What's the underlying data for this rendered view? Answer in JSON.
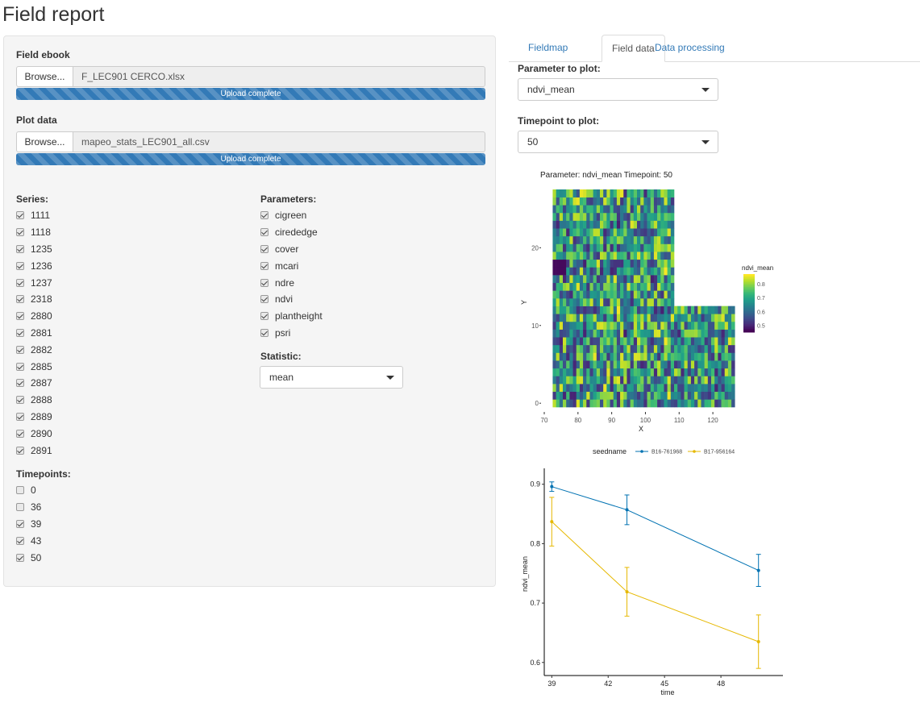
{
  "page": {
    "title": "Field report"
  },
  "sidebar": {
    "ebook": {
      "label": "Field ebook",
      "browse": "Browse...",
      "file": "F_LEC901 CERCO.xlsx",
      "status": "Upload complete",
      "progress": 1.0
    },
    "plot": {
      "label": "Plot data",
      "browse": "Browse...",
      "file": "mapeo_stats_LEC901_all.csv",
      "status": "Upload complete",
      "progress": 1.0
    },
    "series": {
      "label": "Series:",
      "items": [
        {
          "label": "1111",
          "checked": true
        },
        {
          "label": "1118",
          "checked": true
        },
        {
          "label": "1235",
          "checked": true
        },
        {
          "label": "1236",
          "checked": true
        },
        {
          "label": "1237",
          "checked": true
        },
        {
          "label": "2318",
          "checked": true
        },
        {
          "label": "2880",
          "checked": true
        },
        {
          "label": "2881",
          "checked": true
        },
        {
          "label": "2882",
          "checked": true
        },
        {
          "label": "2885",
          "checked": true
        },
        {
          "label": "2887",
          "checked": true
        },
        {
          "label": "2888",
          "checked": true
        },
        {
          "label": "2889",
          "checked": true
        },
        {
          "label": "2890",
          "checked": true
        },
        {
          "label": "2891",
          "checked": true
        }
      ]
    },
    "timepoints": {
      "label": "Timepoints:",
      "items": [
        {
          "label": "0",
          "checked": false
        },
        {
          "label": "36",
          "checked": false
        },
        {
          "label": "39",
          "checked": true
        },
        {
          "label": "43",
          "checked": true
        },
        {
          "label": "50",
          "checked": true
        }
      ]
    },
    "parameters": {
      "label": "Parameters:",
      "items": [
        {
          "label": "cigreen",
          "checked": true
        },
        {
          "label": "cirededge",
          "checked": true
        },
        {
          "label": "cover",
          "checked": true
        },
        {
          "label": "mcari",
          "checked": true
        },
        {
          "label": "ndre",
          "checked": true
        },
        {
          "label": "ndvi",
          "checked": true
        },
        {
          "label": "plantheight",
          "checked": true
        },
        {
          "label": "psri",
          "checked": true
        }
      ]
    },
    "statistic": {
      "label": "Statistic:",
      "value": "mean"
    }
  },
  "tabs": {
    "items": [
      {
        "label": "Fieldmap",
        "active": false
      },
      {
        "label": "Field data",
        "active": true
      },
      {
        "label": "Data processing",
        "active": false
      }
    ]
  },
  "main": {
    "parameter": {
      "label": "Parameter to plot:",
      "value": "ndvi_mean"
    },
    "timepoint": {
      "label": "Timepoint to plot:",
      "value": "50"
    }
  },
  "chart_data": [
    {
      "type": "heatmap",
      "title": "Parameter: ndvi_mean Timepoint: 50",
      "xlabel": "X",
      "ylabel": "Y",
      "xticks": [
        70,
        80,
        90,
        100,
        110,
        120
      ],
      "yticks": [
        0,
        10,
        20
      ],
      "xlim": [
        70,
        125
      ],
      "ylim": [
        -0.5,
        27.5
      ],
      "legend": {
        "title": "ndvi_mean",
        "ticks": [
          0.8,
          0.7,
          0.6,
          0.5
        ],
        "range": [
          0.45,
          0.87
        ],
        "placement": "right"
      },
      "regions": [
        {
          "x_range": [
            73,
            108
          ],
          "y_range": [
            0,
            27
          ]
        },
        {
          "x_range": [
            109,
            126
          ],
          "y_range": [
            0,
            12
          ]
        }
      ],
      "value_range": [
        0.45,
        0.87
      ],
      "colormap": "viridis"
    },
    {
      "type": "line",
      "xlabel": "time",
      "ylabel": "ndvi_mean",
      "xticks": [
        39,
        42,
        45,
        48
      ],
      "yticks": [
        0.6,
        0.7,
        0.8,
        0.9
      ],
      "xlim": [
        38.6,
        51.3
      ],
      "ylim": [
        0.578,
        0.92
      ],
      "legend": {
        "title": "seedname",
        "placement": "top"
      },
      "x": [
        39,
        43,
        50
      ],
      "series": [
        {
          "name": "B16-761968",
          "color": "#0072b2",
          "values": [
            0.896,
            0.857,
            0.755
          ],
          "err": [
            0.008,
            0.025,
            0.027
          ]
        },
        {
          "name": "B17-956164",
          "color": "#e6b800",
          "values": [
            0.837,
            0.719,
            0.635
          ],
          "err": [
            0.041,
            0.041,
            0.045
          ]
        }
      ]
    }
  ]
}
